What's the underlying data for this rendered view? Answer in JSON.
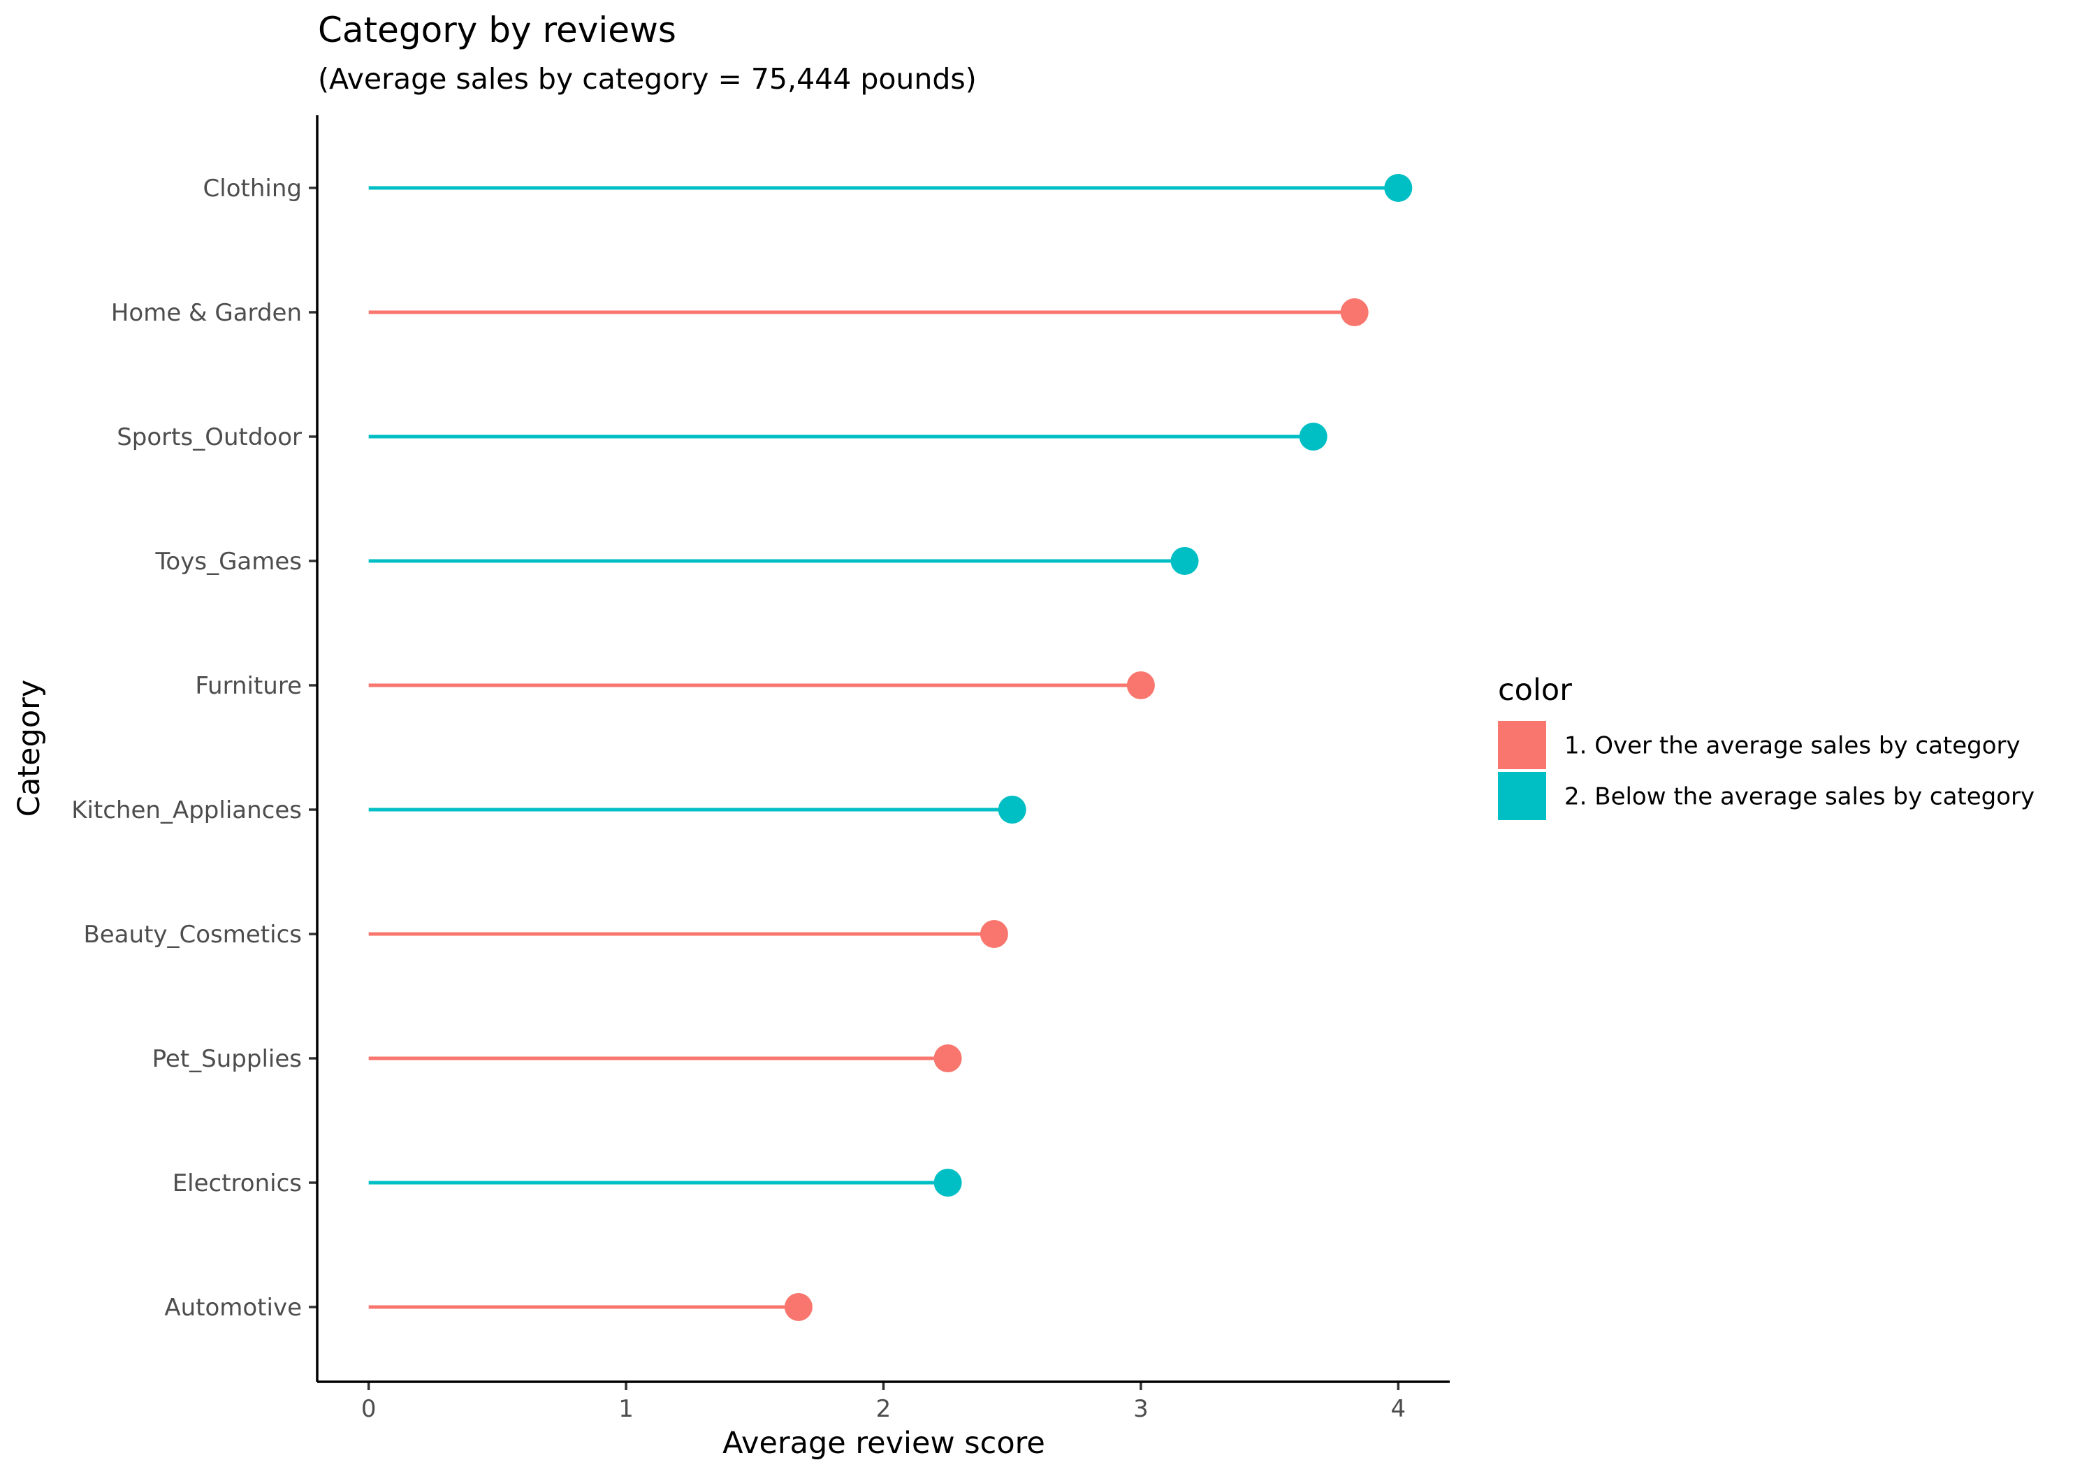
{
  "chart_data": {
    "type": "lollipop",
    "title": "Category by reviews",
    "subtitle": "(Average sales by category = 75,444 pounds)",
    "xlabel": "Average review score",
    "ylabel": "Category",
    "xlim": [
      -0.2,
      4.2
    ],
    "xticks": [
      0,
      1,
      2,
      3,
      4
    ],
    "grid": false,
    "categories": [
      "Clothing",
      "Home & Garden",
      "Sports_Outdoor",
      "Toys_Games",
      "Furniture",
      "Kitchen_Appliances",
      "Beauty_Cosmetics",
      "Pet_Supplies",
      "Electronics",
      "Automotive"
    ],
    "values": [
      4.0,
      3.83,
      3.67,
      3.17,
      3.0,
      2.5,
      2.43,
      2.25,
      2.25,
      1.67
    ],
    "groups": [
      "2. Below the average sales by category",
      "1. Over the average sales by category",
      "2. Below the average sales by category",
      "2. Below the average sales by category",
      "1. Over the average sales by category",
      "2. Below the average sales by category",
      "1. Over the average sales by category",
      "1. Over the average sales by category",
      "2. Below the average sales by category",
      "1. Over the average sales by category"
    ],
    "legend": {
      "title": "color",
      "placement": "right",
      "entries": [
        {
          "label": "1. Over the average sales by category",
          "color": "#F8766D"
        },
        {
          "label": "2. Below the average sales by category",
          "color": "#00BFC4"
        }
      ]
    }
  }
}
